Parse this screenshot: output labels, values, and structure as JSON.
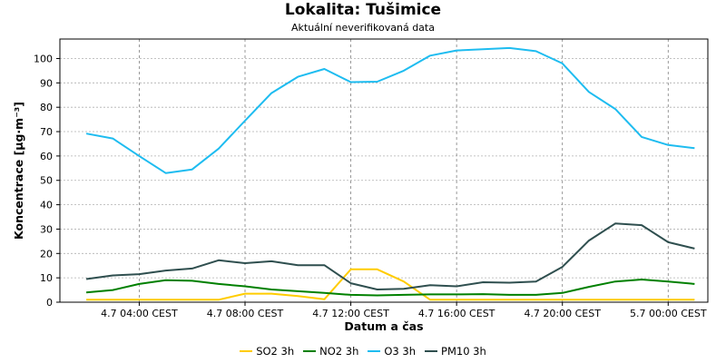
{
  "header": {
    "title": "Lokalita: Tušimice",
    "subtitle": "Aktuální neverifikovaná data"
  },
  "chart_data": {
    "type": "line",
    "xlabel": "Datum a čas",
    "ylabel": "Koncentrace [µg·m⁻³]",
    "ylim": [
      0,
      108
    ],
    "yticks": [
      0,
      10,
      20,
      30,
      40,
      50,
      60,
      70,
      80,
      90,
      100
    ],
    "xlim": [
      -1,
      23.5
    ],
    "xticks": [
      {
        "x": 2,
        "label": "4.7 04:00 CEST"
      },
      {
        "x": 6,
        "label": "4.7 08:00 CEST"
      },
      {
        "x": 10,
        "label": "4.7 12:00 CEST"
      },
      {
        "x": 14,
        "label": "4.7 16:00 CEST"
      },
      {
        "x": 18,
        "label": "4.7 20:00 CEST"
      },
      {
        "x": 22,
        "label": "5.7 00:00 CEST"
      }
    ],
    "grid": true,
    "legend_position": "bottom",
    "x": [
      0,
      1,
      2,
      3,
      4,
      5,
      6,
      7,
      8,
      9,
      10,
      11,
      12,
      13,
      14,
      15,
      16,
      17,
      18,
      19,
      20,
      21,
      22,
      23
    ],
    "series": [
      {
        "name": "SO2 3h",
        "color": "#ffcc00",
        "values": [
          1,
          1,
          1,
          1,
          1,
          1,
          3.5,
          3.5,
          2.5,
          1.2,
          13.5,
          13.5,
          8.5,
          1,
          1,
          1,
          1,
          1,
          1,
          1,
          1,
          1,
          1,
          1
        ]
      },
      {
        "name": "NO2 3h",
        "color": "#008000",
        "values": [
          4,
          5,
          7.5,
          9,
          8.8,
          7.5,
          6.5,
          5.2,
          4.5,
          3.8,
          3,
          2.8,
          3,
          3.2,
          3.2,
          3.3,
          3,
          3,
          3.8,
          6.3,
          8.5,
          9.3,
          8.5,
          7.5
        ]
      },
      {
        "name": "O3 3h",
        "color": "#1ebcf0",
        "values": [
          69.2,
          67.2,
          60,
          53,
          54.5,
          63,
          74.5,
          85.8,
          92.5,
          95.7,
          90.3,
          90.5,
          95,
          101.2,
          103.3,
          103.8,
          104.3,
          103,
          98,
          86.3,
          79.3,
          67.8,
          64.5,
          63.2
        ]
      },
      {
        "name": "PM10 3h",
        "color": "#2f4f4f",
        "values": [
          9.5,
          11,
          11.5,
          13,
          13.8,
          17.2,
          16,
          16.8,
          15.2,
          15.2,
          7.8,
          5.2,
          5.5,
          7,
          6.5,
          8.2,
          8,
          8.5,
          14.5,
          25.3,
          32.3,
          31.6,
          24.6,
          22
        ]
      }
    ]
  }
}
